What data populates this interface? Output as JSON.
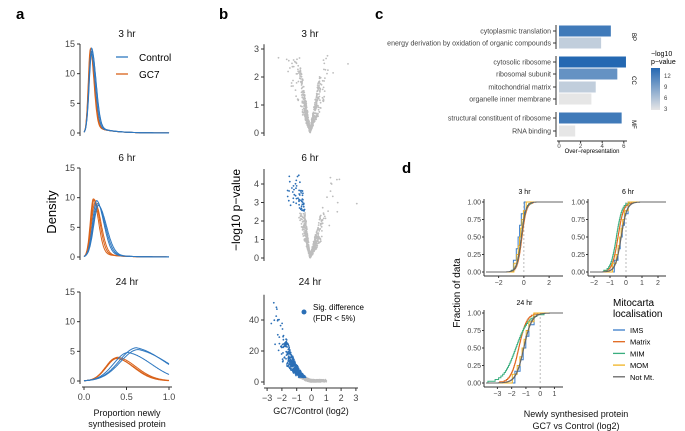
{
  "panel_labels": {
    "a": "a",
    "b": "b",
    "c": "c",
    "d": "d"
  },
  "chart_data": [
    {
      "panel": "a",
      "type": "line",
      "facets": [
        "3 hr",
        "6 hr",
        "24 hr"
      ],
      "xlabel": [
        "Proportion newly",
        "synthesised protein"
      ],
      "ylabel": "Density",
      "xlim": [
        0,
        1
      ],
      "ylim": [
        0,
        15
      ],
      "xticks": [
        "0.0",
        "0.5",
        "1.0"
      ],
      "yticks": [
        "0",
        "5",
        "10",
        "15"
      ],
      "legend": {
        "placement": "top-right",
        "entries": [
          {
            "name": "Control",
            "color": "#2f78c0"
          },
          {
            "name": "GC7",
            "color": "#d9621a"
          }
        ]
      },
      "series": [
        {
          "facet": "3 hr",
          "Control_peaks": [
            [
              0.09,
              14.3
            ],
            [
              0.085,
              13.5
            ],
            [
              0.092,
              13.8
            ]
          ],
          "GC7_peaks": [
            [
              0.075,
              14.2
            ],
            [
              0.08,
              13.6
            ],
            [
              0.078,
              13.9
            ]
          ]
        },
        {
          "facet": "6 hr",
          "Control_peaks": [
            [
              0.15,
              9.5
            ],
            [
              0.17,
              8.7
            ],
            [
              0.16,
              9.0
            ]
          ],
          "GC7_peaks": [
            [
              0.11,
              9.8
            ],
            [
              0.12,
              9.7
            ],
            [
              0.13,
              9.2
            ]
          ]
        },
        {
          "facet": "24 hr",
          "Control_peaks": [
            [
              0.52,
              4.8
            ],
            [
              0.62,
              5.6
            ],
            [
              0.64,
              5.3
            ]
          ],
          "GC7_peaks": [
            [
              0.38,
              3.9
            ],
            [
              0.4,
              4.0
            ],
            [
              0.39,
              3.8
            ]
          ]
        }
      ]
    },
    {
      "panel": "b",
      "type": "scatter",
      "xlabel": "GC7/Control (log2)",
      "ylabel": "−log10 p−value",
      "xlim": [
        -3,
        3
      ],
      "xticks": [
        "−3",
        "−2",
        "−1",
        "0",
        "1",
        "2",
        "3"
      ],
      "facets": [
        {
          "title": "3 hr",
          "ylim": [
            0,
            3.1
          ],
          "yticks": [
            "0",
            "1",
            "2",
            "3"
          ],
          "yvals": [
            0,
            1,
            2,
            3
          ],
          "center": -0.1,
          "max_y": 3.1
        },
        {
          "title": "6 hr",
          "ylim": [
            0,
            4.7
          ],
          "yticks": [
            "0",
            "1",
            "2",
            "3",
            "4"
          ],
          "yvals": [
            0,
            1,
            2,
            3,
            4
          ],
          "center": -0.1,
          "max_y": 4.7
        },
        {
          "title": "24 hr",
          "ylim": [
            0,
            55
          ],
          "yticks": [
            "0",
            "20",
            "40"
          ],
          "yvals": [
            0,
            20,
            40
          ],
          "center": -0.6,
          "max_y": 55
        }
      ],
      "legend": {
        "label_1": "Sig. difference",
        "label_2": "(FDR < 5%)"
      },
      "colors": {
        "significant": "#2b6fb6",
        "not_significant": "#bdbdbd"
      }
    },
    {
      "panel": "c",
      "type": "bar",
      "xlabel": "Over−representation",
      "xlim": [
        0,
        6.3
      ],
      "xticks": [
        "0",
        "2",
        "4",
        "6"
      ],
      "groups": [
        {
          "name": "BP",
          "bars": [
            {
              "term": "cytoplasmic translation",
              "value": 4.8,
              "neglog10p": 12
            },
            {
              "term": "energy derivation by oxidation of organic compounds",
              "value": 3.9,
              "neglog10p": 5
            }
          ]
        },
        {
          "name": "CC",
          "bars": [
            {
              "term": "cytosolic ribosome",
              "value": 6.2,
              "neglog10p": 14
            },
            {
              "term": "ribosomal subunit",
              "value": 5.4,
              "neglog10p": 10
            },
            {
              "term": "mitochondrial matrix",
              "value": 3.4,
              "neglog10p": 5
            },
            {
              "term": "organelle inner membrane",
              "value": 3.0,
              "neglog10p": 3
            }
          ]
        },
        {
          "name": "MF",
          "bars": [
            {
              "term": "structural constituent of ribosome",
              "value": 5.8,
              "neglog10p": 12
            },
            {
              "term": "RNA binding",
              "value": 1.5,
              "neglog10p": 2.5
            }
          ]
        }
      ],
      "colorbar": {
        "title_1": "−log10",
        "title_2": "p−value",
        "ticks": [
          "12",
          "9",
          "6",
          "3"
        ],
        "low_color": "#e6e6e6",
        "high_color": "#2468b2",
        "range": [
          3,
          13.5
        ]
      }
    },
    {
      "panel": "d",
      "type": "line",
      "subtype": "ecdf",
      "ylabel": "Fraction of data",
      "xlabel": [
        "Newly synthesised protein",
        "GC7 vs Control (log2)"
      ],
      "yticks": [
        "0.00",
        "0.25",
        "0.50",
        "0.75",
        "1.00"
      ],
      "legend": {
        "title_1": "Mitocarta",
        "title_2": "localisation",
        "placement": "bottom-right",
        "entries": [
          {
            "name": "IMS",
            "color": "#3a7dc9"
          },
          {
            "name": "Matrix",
            "color": "#e0661c"
          },
          {
            "name": "MIM",
            "color": "#3aae7f"
          },
          {
            "name": "MOM",
            "color": "#f0b323"
          },
          {
            "name": "Not Mt.",
            "color": "#666666"
          }
        ]
      },
      "facets": [
        {
          "title": "3 hr",
          "xlim": [
            -3.0,
            3.1
          ],
          "xticks": [
            "−2",
            "0",
            "2"
          ],
          "xvals": [
            -2,
            0,
            2
          ],
          "medians": {
            "IMS": -0.4,
            "Matrix": -0.15,
            "MIM": -0.2,
            "MOM": -0.3,
            "Not Mt.": -0.2
          }
        },
        {
          "title": "6 hr",
          "xlim": [
            -2.25,
            2.5
          ],
          "xticks": [
            "−2",
            "−1",
            "0",
            "1",
            "2"
          ],
          "xvals": [
            -2,
            -1,
            0,
            1,
            2
          ],
          "medians": {
            "IMS": -0.3,
            "Matrix": -0.5,
            "MIM": -0.6,
            "MOM": -0.35,
            "Not Mt.": -0.3
          }
        },
        {
          "title": "24 hr",
          "xlim": [
            -3.8,
            1.6
          ],
          "xticks": [
            "−3",
            "−2",
            "−1",
            "0",
            "1"
          ],
          "xvals": [
            -3,
            -2,
            -1,
            0,
            1
          ],
          "medians": {
            "IMS": -1.1,
            "Matrix": -1.5,
            "MIM": -1.7,
            "MOM": -1.2,
            "Not Mt.": -1.15
          }
        }
      ]
    }
  ]
}
